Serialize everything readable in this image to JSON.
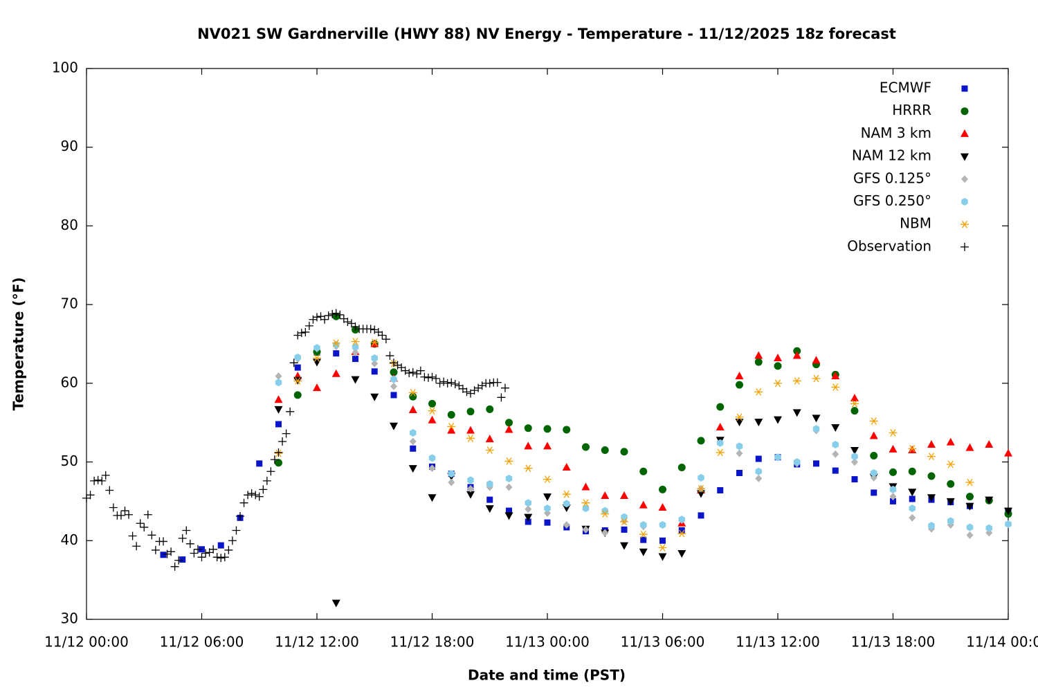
{
  "chart_data": {
    "type": "scatter",
    "title": "NV021 SW Gardnerville (HWY 88) NV Energy - Temperature - 11/12/2025 18z forecast",
    "x_label": "Date and time (PST)",
    "y_label": "Temperature (°F)",
    "xlim": [
      0,
      48
    ],
    "xticks": [
      {
        "value": 0,
        "label": "11/12 00:00"
      },
      {
        "value": 6,
        "label": "11/12 06:00"
      },
      {
        "value": 12,
        "label": "11/12 12:00"
      },
      {
        "value": 18,
        "label": "11/12 18:00"
      },
      {
        "value": 24,
        "label": "11/13 00:00"
      },
      {
        "value": 30,
        "label": "11/13 06:00"
      },
      {
        "value": 36,
        "label": "11/13 12:00"
      },
      {
        "value": 42,
        "label": "11/13 18:00"
      },
      {
        "value": 48,
        "label": "11/14 00:00"
      }
    ],
    "ylim": [
      30,
      100
    ],
    "yticks": [
      30,
      40,
      50,
      60,
      70,
      80,
      90,
      100
    ],
    "grid": false,
    "legend": "upper-right",
    "series": [
      {
        "name": "ECMWF",
        "color": "#0a14c8",
        "marker": "square",
        "x": [
          4,
          5,
          6,
          7,
          8,
          9,
          10,
          11,
          12,
          13,
          14,
          15,
          16,
          17,
          18,
          19,
          20,
          21,
          22,
          23,
          24,
          25,
          26,
          27,
          28,
          29,
          30,
          31,
          32,
          33,
          34,
          35,
          36,
          37,
          38,
          39,
          40,
          41,
          42,
          43,
          44,
          45,
          46,
          47,
          48
        ],
        "values": [
          38.2,
          37.6,
          38.9,
          39.4,
          42.9,
          49.8,
          54.8,
          62.0,
          63.9,
          63.8,
          63.1,
          61.5,
          58.5,
          51.7,
          49.4,
          48.5,
          46.8,
          45.2,
          43.8,
          42.4,
          42.3,
          41.7,
          41.2,
          41.3,
          41.4,
          40.1,
          40.0,
          41.3,
          43.2,
          46.4,
          48.6,
          50.4,
          50.6,
          49.7,
          49.8,
          48.9,
          47.8,
          46.1,
          45.0,
          45.3,
          45.2,
          44.9,
          44.4,
          null,
          43.8
        ]
      },
      {
        "name": "HRRR",
        "color": "#006400",
        "marker": "circle",
        "x": [
          10,
          11,
          12,
          13,
          14,
          15,
          16,
          17,
          18,
          19,
          20,
          21,
          22,
          23,
          24,
          25,
          26,
          27,
          28,
          29,
          30,
          31,
          32,
          33,
          34,
          35,
          36,
          37,
          38,
          39,
          40,
          41,
          42,
          43,
          44,
          45,
          46,
          47,
          48
        ],
        "values": [
          49.9,
          58.5,
          64.0,
          68.5,
          66.8,
          65.0,
          61.4,
          58.3,
          57.4,
          56.0,
          56.4,
          56.7,
          55.0,
          54.3,
          54.2,
          54.1,
          51.9,
          51.5,
          51.3,
          48.8,
          46.5,
          49.3,
          52.7,
          57.0,
          59.8,
          62.7,
          62.2,
          64.1,
          62.4,
          61.1,
          56.5,
          50.8,
          48.7,
          48.8,
          48.2,
          47.2,
          45.6,
          45.1,
          43.4
        ]
      },
      {
        "name": "NAM 3 km",
        "color": "#ff0000",
        "marker": "triangle-up",
        "x": [
          10,
          11,
          12,
          13,
          14,
          15,
          16,
          17,
          18,
          19,
          20,
          21,
          22,
          23,
          24,
          25,
          26,
          27,
          28,
          29,
          30,
          31,
          32,
          33,
          34,
          35,
          36,
          37,
          38,
          39,
          40,
          41,
          42,
          43,
          44,
          45,
          46,
          47,
          48
        ],
        "values": [
          57.9,
          60.9,
          59.4,
          61.2,
          64.0,
          65.0,
          60.6,
          56.6,
          55.3,
          54.0,
          54.0,
          52.9,
          54.1,
          52.0,
          52.0,
          49.3,
          46.8,
          45.7,
          45.7,
          44.5,
          44.2,
          42.2,
          46.4,
          54.4,
          60.9,
          63.5,
          63.2,
          63.5,
          62.9,
          60.9,
          58.1,
          53.3,
          51.6,
          51.5,
          52.2,
          52.5,
          51.8,
          52.2,
          51.1
        ]
      },
      {
        "name": "NAM 12 km",
        "color": "#000000",
        "marker": "triangle-down",
        "x": [
          10,
          11,
          12,
          13,
          14,
          15,
          16,
          17,
          18,
          19,
          20,
          21,
          22,
          23,
          24,
          25,
          26,
          27,
          28,
          29,
          30,
          31,
          32,
          33,
          34,
          35,
          36,
          37,
          38,
          39,
          40,
          41,
          42,
          43,
          44,
          45,
          46,
          47,
          48
        ],
        "values": [
          56.7,
          60.4,
          62.7,
          32.1,
          60.5,
          58.3,
          54.6,
          49.2,
          45.5,
          48.2,
          45.9,
          44.1,
          43.2,
          43.0,
          45.6,
          44.2,
          41.5,
          41.0,
          39.4,
          38.6,
          38.0,
          38.4,
          46.0,
          52.8,
          55.1,
          55.1,
          55.4,
          56.3,
          55.6,
          54.4,
          51.5,
          48.1,
          46.9,
          46.2,
          45.5,
          45.0,
          44.4,
          45.2,
          43.8
        ]
      },
      {
        "name": "GFS 0.125°",
        "color": "#b4b4b4",
        "marker": "diamond",
        "x": [
          10,
          11,
          12,
          13,
          14,
          15,
          16,
          17,
          18,
          19,
          20,
          21,
          22,
          23,
          24,
          25,
          26,
          27,
          28,
          29,
          30,
          31,
          32,
          33,
          34,
          35,
          36,
          37,
          38,
          39,
          40,
          41,
          42,
          43,
          44,
          45,
          46,
          47,
          48
        ],
        "values": [
          60.9,
          63.1,
          64.4,
          64.7,
          63.9,
          62.5,
          59.6,
          52.6,
          49.2,
          47.4,
          46.6,
          46.8,
          46.8,
          44.0,
          43.5,
          42.0,
          41.4,
          41.0,
          42.5,
          41.8,
          42.0,
          42.6,
          46.6,
          52.4,
          51.1,
          47.9,
          50.6,
          49.8,
          54.0,
          51.0,
          50.0,
          48.0,
          45.6,
          42.9,
          41.5,
          42.0,
          40.7,
          41.0,
          42.1
        ]
      },
      {
        "name": "GFS 0.250°",
        "color": "#87ceeb",
        "marker": "hexagon",
        "x": [
          10,
          11,
          12,
          13,
          14,
          15,
          16,
          17,
          18,
          19,
          20,
          21,
          22,
          23,
          24,
          25,
          26,
          27,
          28,
          29,
          30,
          31,
          32,
          33,
          34,
          35,
          36,
          37,
          38,
          39,
          40,
          41,
          42,
          43,
          44,
          45,
          46,
          47,
          48
        ],
        "values": [
          60.1,
          63.3,
          64.5,
          64.9,
          64.6,
          63.2,
          60.5,
          53.7,
          50.5,
          48.5,
          47.7,
          47.2,
          47.9,
          44.8,
          44.1,
          44.7,
          44.1,
          43.8,
          43.0,
          42.0,
          42.0,
          42.7,
          48.0,
          52.4,
          52.0,
          48.8,
          50.6,
          50.0,
          54.2,
          52.2,
          50.7,
          48.6,
          46.5,
          44.1,
          41.9,
          42.5,
          41.7,
          41.6,
          42.1
        ]
      },
      {
        "name": "NBM",
        "color": "#f5a000",
        "marker": "asterisk",
        "x": [
          10,
          11,
          12,
          13,
          14,
          15,
          16,
          17,
          18,
          19,
          20,
          21,
          22,
          23,
          24,
          25,
          26,
          27,
          28,
          29,
          30,
          31,
          32,
          33,
          34,
          35,
          36,
          37,
          38,
          39,
          40,
          41,
          42,
          43,
          44,
          45,
          46
        ],
        "values": [
          51.1,
          60.3,
          63.2,
          65.1,
          65.3,
          65.2,
          62.5,
          58.8,
          56.5,
          54.5,
          53.0,
          51.5,
          50.1,
          49.2,
          47.8,
          45.9,
          44.8,
          43.4,
          42.4,
          40.8,
          39.1,
          40.9,
          46.6,
          51.2,
          55.7,
          58.9,
          60.0,
          60.3,
          60.6,
          59.5,
          57.4,
          55.2,
          53.7,
          51.7,
          50.7,
          49.7,
          47.4
        ]
      },
      {
        "name": "Observation",
        "color": "#000000",
        "marker": "plus",
        "x": [
          0,
          0.2,
          0.4,
          0.6,
          0.8,
          1,
          1.2,
          1.4,
          1.6,
          1.8,
          2,
          2.2,
          2.4,
          2.6,
          2.8,
          3,
          3.2,
          3.4,
          3.6,
          3.8,
          4,
          4.2,
          4.4,
          4.6,
          4.8,
          5,
          5.2,
          5.4,
          5.6,
          5.8,
          6,
          6.2,
          6.4,
          6.6,
          6.8,
          7,
          7.2,
          7.4,
          7.6,
          7.8,
          8,
          8.2,
          8.4,
          8.6,
          8.8,
          9,
          9.2,
          9.4,
          9.6,
          9.8,
          10,
          10.2,
          10.4,
          10.6,
          10.8,
          11,
          11.2,
          11.4,
          11.6,
          11.8,
          12,
          12.2,
          12.4,
          12.6,
          12.8,
          13,
          13.2,
          13.4,
          13.6,
          13.8,
          14,
          14.2,
          14.4,
          14.6,
          14.8,
          15,
          15.2,
          15.4,
          15.6,
          15.8,
          16,
          16.2,
          16.4,
          16.6,
          16.8,
          17,
          17.2,
          17.4,
          17.6,
          17.8,
          18,
          18.2,
          18.4,
          18.6,
          18.8,
          19,
          19.2,
          19.4,
          19.6,
          19.8,
          20,
          20.2,
          20.4,
          20.6,
          20.8,
          21,
          21.2,
          21.4,
          21.6,
          21.8
        ],
        "values": [
          45.4,
          45.8,
          47.6,
          47.7,
          47.6,
          48.3,
          46.4,
          44.2,
          43.2,
          43.2,
          43.8,
          43.3,
          40.6,
          39.3,
          42.2,
          41.7,
          43.3,
          40.7,
          38.8,
          39.9,
          39.9,
          38.3,
          38.6,
          36.7,
          37.5,
          40.3,
          41.3,
          39.6,
          38.4,
          38.9,
          37.9,
          38.4,
          38.5,
          38.9,
          37.9,
          37.8,
          37.9,
          38.8,
          40.0,
          41.3,
          43.1,
          44.8,
          45.8,
          46.0,
          45.8,
          45.6,
          46.5,
          47.6,
          48.8,
          50.3,
          51.2,
          52.6,
          53.6,
          56.4,
          62.6,
          66.1,
          66.4,
          66.5,
          67.3,
          68.1,
          68.4,
          68.5,
          68.1,
          68.6,
          68.8,
          68.9,
          68.7,
          68.2,
          67.8,
          67.6,
          67.2,
          66.9,
          66.9,
          66.9,
          66.9,
          66.8,
          66.5,
          66.1,
          65.6,
          63.5,
          62.6,
          62.3,
          62.0,
          61.6,
          61.3,
          61.4,
          61.2,
          61.6,
          60.8,
          60.7,
          60.8,
          60.6,
          60.0,
          60.2,
          60.0,
          60.1,
          59.9,
          59.7,
          59.3,
          58.9,
          58.7,
          59.1,
          59.4,
          59.7,
          60.0,
          60.0,
          60.1,
          60.1,
          58.2,
          59.4
        ]
      }
    ]
  }
}
